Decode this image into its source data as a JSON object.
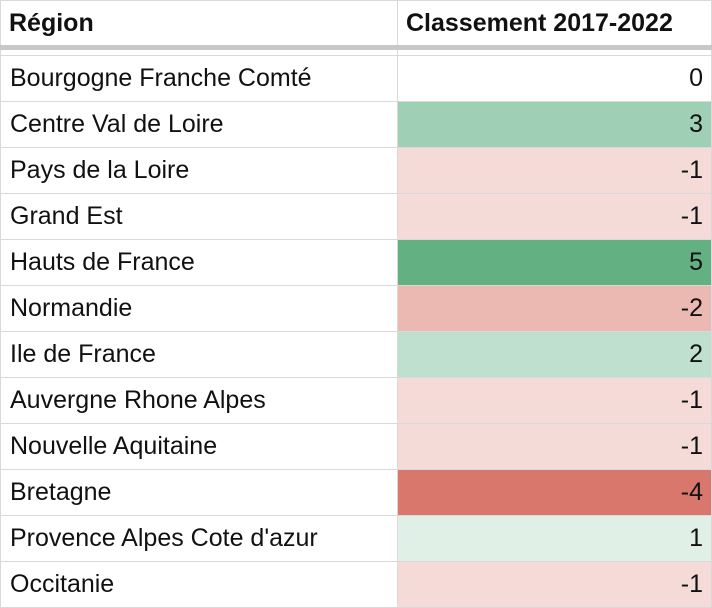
{
  "table": {
    "headers": {
      "region": "Région",
      "score": "Classement 2017-2022"
    },
    "rows": [
      {
        "region": "Bourgogne Franche Comté",
        "score": "0",
        "color": "#ffffff"
      },
      {
        "region": "Centre Val de Loire",
        "score": "3",
        "color": "#9fd0b5"
      },
      {
        "region": "Pays de la Loire",
        "score": "-1",
        "color": "#f4dbd8"
      },
      {
        "region": "Grand Est",
        "score": "-1",
        "color": "#f4dbd8"
      },
      {
        "region": "Hauts de France",
        "score": "5",
        "color": "#63b183"
      },
      {
        "region": "Normandie",
        "score": "-2",
        "color": "#ebb8b2"
      },
      {
        "region": "Ile de France",
        "score": "2",
        "color": "#bfe0ce"
      },
      {
        "region": "Auvergne Rhone Alpes",
        "score": "-1",
        "color": "#f4dbd8"
      },
      {
        "region": "Nouvelle Aquitaine",
        "score": "-1",
        "color": "#f4dbd8"
      },
      {
        "region": "Bretagne",
        "score": "-4",
        "color": "#d9776c"
      },
      {
        "region": "Provence Alpes Cote d'azur",
        "score": "1",
        "color": "#e0f0e6"
      },
      {
        "region": "Occitanie",
        "score": "-1",
        "color": "#f4dbd8"
      }
    ]
  }
}
